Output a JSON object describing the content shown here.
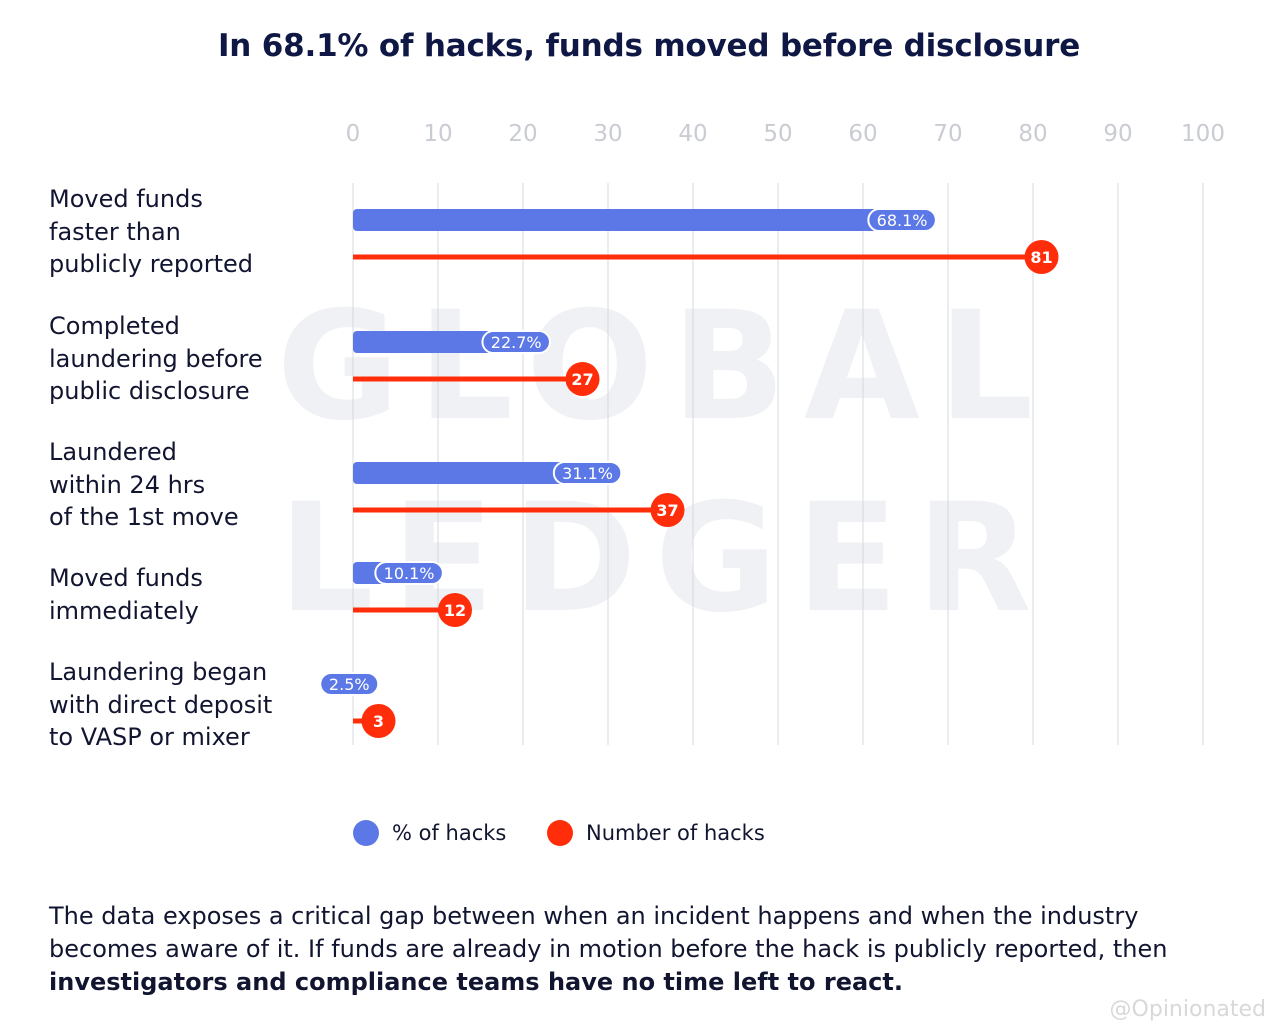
{
  "chart_data": {
    "type": "bar",
    "orientation": "horizontal",
    "title": "In 68.1% of hacks, funds moved before disclosure",
    "xlim": [
      0,
      100
    ],
    "xticks": [
      "0",
      "10",
      "20",
      "30",
      "40",
      "50",
      "60",
      "70",
      "80",
      "90",
      "100"
    ],
    "grid": true,
    "categories": [
      "Moved funds\nfaster than\npublicly reported",
      "Completed\nlaundering before\npublic disclosure",
      "Laundered\nwithin 24 hrs\nof the 1st move",
      "Moved funds\nimmediately",
      "Laundering began\nwith direct deposit\nto VASP or mixer"
    ],
    "series": [
      {
        "name": "% of hacks",
        "color": "#5b78e6",
        "values": [
          68.1,
          22.7,
          31.1,
          10.1,
          2.5
        ],
        "labels": [
          "68.1%",
          "22.7%",
          "31.1%",
          "10.1%",
          "2.5%"
        ]
      },
      {
        "name": "Number of hacks",
        "color": "#ff2d0a",
        "values": [
          81,
          27,
          37,
          12,
          3
        ],
        "labels": [
          "81",
          "27",
          "37",
          "12",
          "3"
        ]
      }
    ],
    "legend": "bottom-center",
    "watermark": [
      "GLOBAL",
      "LEDGER"
    ]
  },
  "caption": {
    "normal": "The data exposes a critical gap between when an incident happens and when the industry becomes aware of it. If funds are already in motion before the hack is publicly reported, then ",
    "bold": "investigators and compliance teams have no time left to react."
  },
  "footer_watermark": "@Opinionated"
}
